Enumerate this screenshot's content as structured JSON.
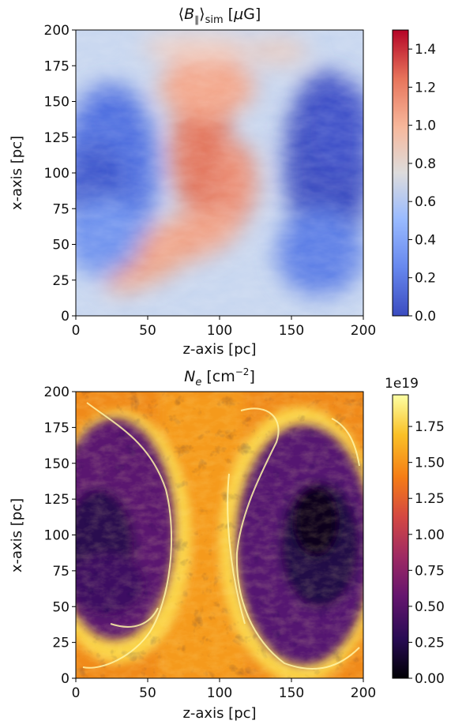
{
  "chart_data": [
    {
      "type": "heatmap",
      "title": "⟨B∥⟩sim [μG]",
      "title_parts": {
        "lhs": "⟨",
        "var": "B",
        "sub1": "∥",
        "rhs": "⟩",
        "sub2": "sim",
        "unit_open": " [",
        "mu": "μ",
        "unit": "G]"
      },
      "xlabel": "z-axis [pc]",
      "ylabel": "x-axis [pc]",
      "xlim": [
        0,
        200
      ],
      "ylim": [
        0,
        200
      ],
      "xticks": [
        "0",
        "50",
        "100",
        "150",
        "200"
      ],
      "yticks": [
        "0",
        "25",
        "50",
        "75",
        "100",
        "125",
        "150",
        "175",
        "200"
      ],
      "colormap": "coolwarm",
      "colorbar": {
        "ticks": [
          "0.0",
          "0.2",
          "0.4",
          "0.6",
          "0.8",
          "1.0",
          "1.2",
          "1.4"
        ],
        "range": [
          0,
          1.5
        ],
        "offset_label": ""
      },
      "structure": "high field (~1.0–1.3) in an hourglass band centred near z≈90 pc; low field (~0.1–0.3) in two lobes centred near z≈25 pc and z≈175 pc, x≈100 pc"
    },
    {
      "type": "heatmap",
      "title": "Ne [cm−2]",
      "title_parts": {
        "var": "N",
        "sub": "e",
        "unit_open": " [cm",
        "sup": "−2",
        "unit_close": "]"
      },
      "xlabel": "z-axis [pc]",
      "ylabel": "x-axis [pc]",
      "xlim": [
        0,
        200
      ],
      "ylim": [
        0,
        200
      ],
      "xticks": [
        "0",
        "50",
        "100",
        "150",
        "200"
      ],
      "yticks": [
        "0",
        "25",
        "50",
        "75",
        "100",
        "125",
        "150",
        "175",
        "200"
      ],
      "colormap": "inferno",
      "colorbar": {
        "ticks": [
          "0.00",
          "0.25",
          "0.50",
          "0.75",
          "1.00",
          "1.25",
          "1.50",
          "1.75"
        ],
        "range": [
          0,
          1.97
        ],
        "offset_label": "1e19"
      },
      "structure": "dense column (~1.5e19) through the centre and along bubble rims (~1.9e19); two low-density bubbles (~0.1–0.4e19) centred near z≈25 pc and z≈170 pc, x≈100 pc"
    }
  ]
}
